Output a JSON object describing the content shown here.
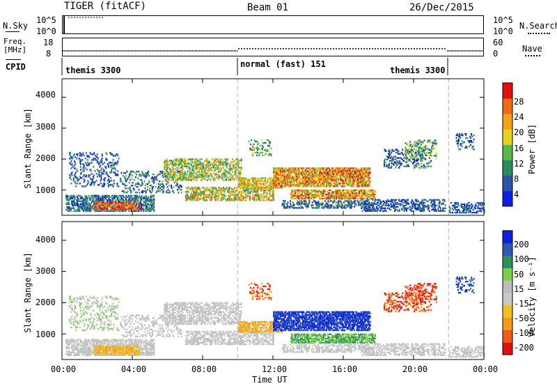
{
  "header": {
    "station": "TIGER (fitACF)",
    "beam": "Beam 01",
    "date": "26/Dec/2015"
  },
  "strip": {
    "nsky": {
      "label": "N.Sky",
      "ticks": [
        "10^5",
        "10^0"
      ]
    },
    "nsearch": {
      "label": "N.Search",
      "ticks": [
        "10^5",
        "10^0"
      ]
    },
    "freq": {
      "label_line1": "Freq.",
      "label_line2": "[MHz]",
      "ticks": [
        "18",
        "8"
      ]
    },
    "nave": {
      "label": "Nave",
      "ticks": [
        "60",
        "0"
      ]
    },
    "cpid": {
      "label": "CPID",
      "segments": [
        "themis 3300",
        "normal (fast) 151",
        "themis 3300"
      ]
    }
  },
  "colors": {
    "power": [
      "#0b1fe6",
      "#2d52a8",
      "#2b8a5d",
      "#58b84c",
      "#e9d21c",
      "#f4a11b",
      "#f06a12",
      "#e21010"
    ],
    "velocity": [
      "#e21010",
      "#f05a14",
      "#f49a1a",
      "#f0c020",
      "#c8c8c8",
      "#bdbdbd",
      "#7ad048",
      "#2e8f5a",
      "#2f58b4",
      "#0a22e0"
    ]
  },
  "chart_data": [
    {
      "type": "heatmap",
      "title": "Power",
      "ylabel": "Slant Range [km]",
      "xlabel": "Time UT",
      "x_ticks": [
        "00:00",
        "04:00",
        "08:00",
        "12:00",
        "16:00",
        "20:00",
        "00:00"
      ],
      "y_ticks": [
        "4000",
        "3000",
        "2000",
        "1000"
      ],
      "ylim": [
        180,
        4600
      ],
      "xlim_hours": [
        0,
        24
      ],
      "colorbar": {
        "label": "Power [dB]",
        "ticks": [
          "28",
          "24",
          "20",
          "16",
          "12",
          "8",
          "4"
        ],
        "range": [
          0,
          30
        ]
      }
    },
    {
      "type": "heatmap",
      "title": "Velocity",
      "ylabel": "Slant Range [km]",
      "xlabel": "Time UT",
      "x_ticks": [
        "00:00",
        "04:00",
        "08:00",
        "12:00",
        "16:00",
        "20:00",
        "00:00"
      ],
      "y_ticks": [
        "4000",
        "3000",
        "2000",
        "1000"
      ],
      "ylim": [
        180,
        4600
      ],
      "xlim_hours": [
        0,
        24
      ],
      "colorbar": {
        "label": "Velocity [m s⁻¹]",
        "ticks": [
          "200",
          "100",
          "50",
          "15",
          "-15",
          "-50",
          "-100",
          "-200"
        ],
        "range": [
          -250,
          250
        ]
      }
    }
  ]
}
